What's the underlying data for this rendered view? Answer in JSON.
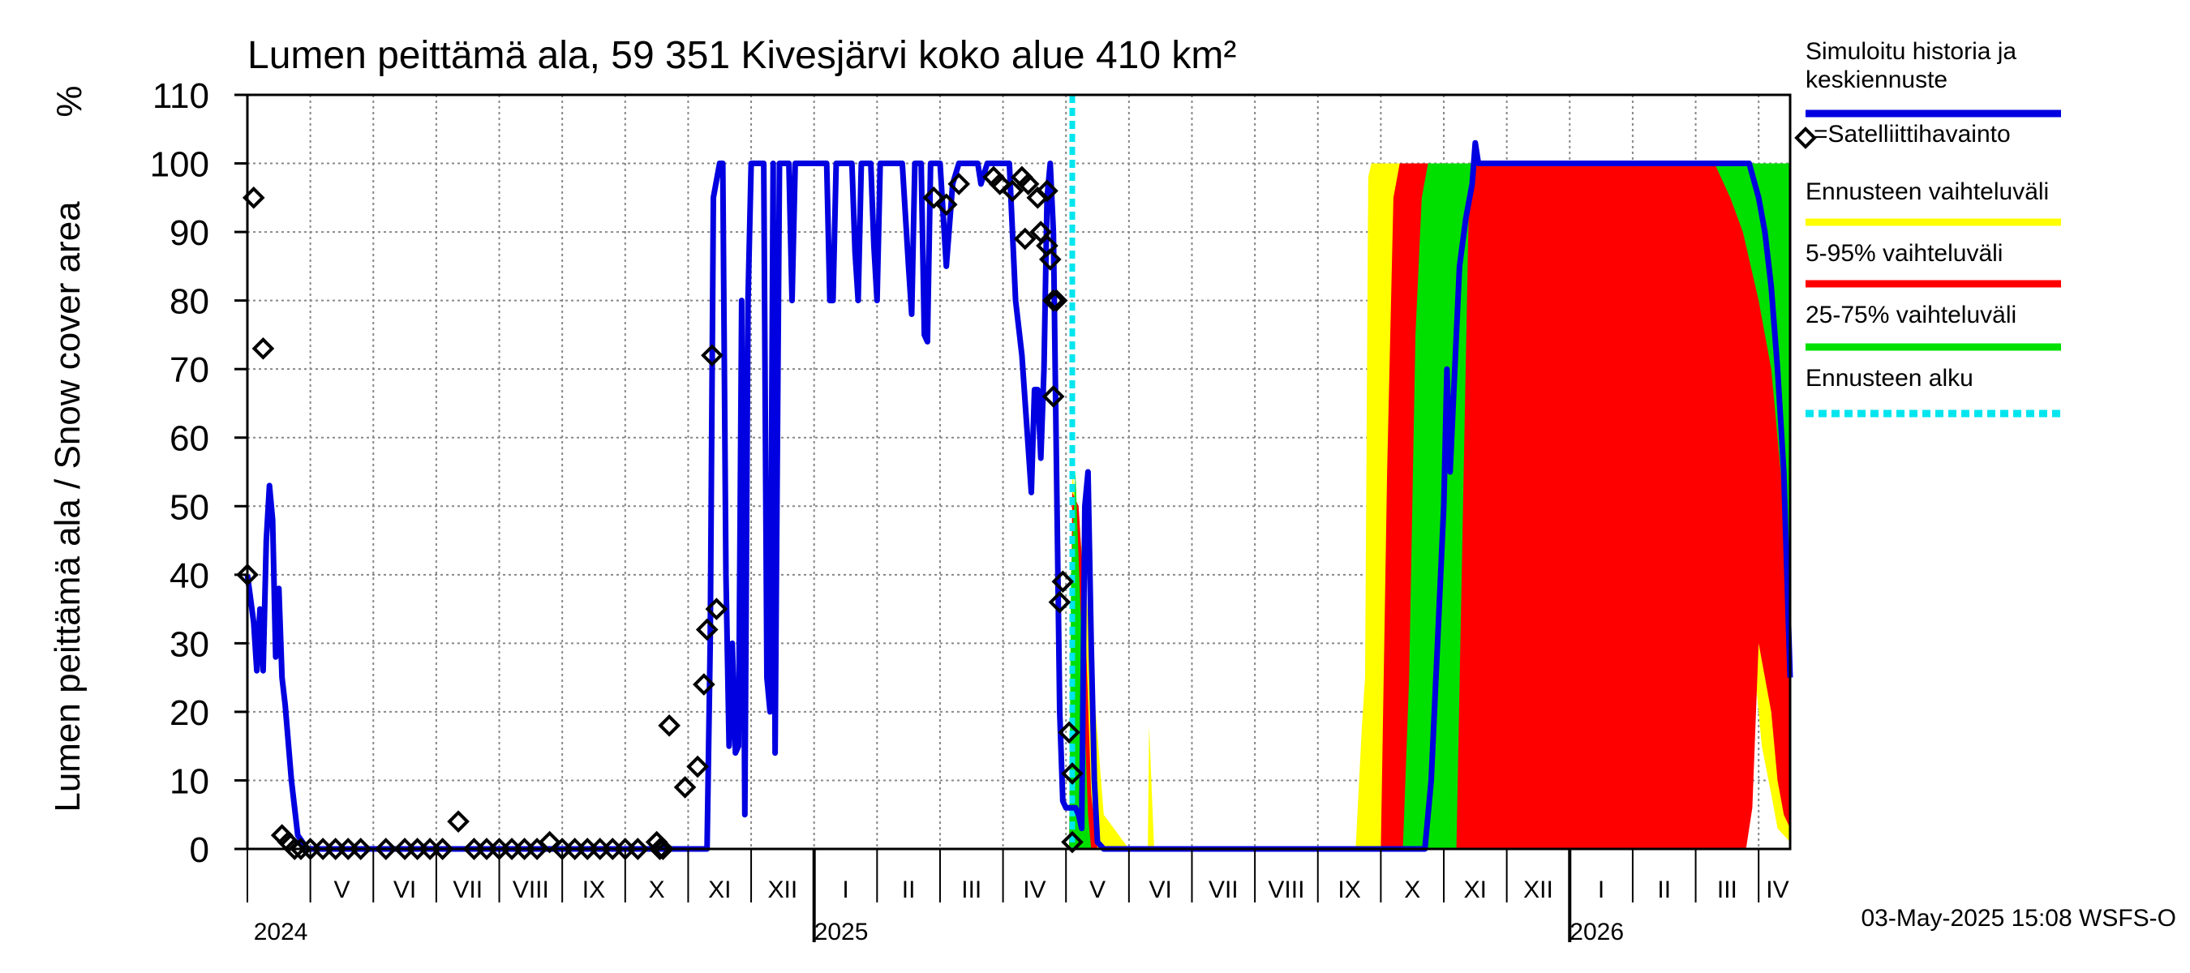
{
  "chart_data": {
    "type": "area",
    "title": "Lumen peittämä ala, 59 351 Kivesjärvi koko alue 410 km²",
    "ylabel": "Lumen peittämä ala / Snow cover area",
    "yunit": "%",
    "ylim": [
      0,
      110
    ],
    "yticks": [
      0,
      10,
      20,
      30,
      40,
      50,
      60,
      70,
      80,
      90,
      100,
      110
    ],
    "xlim": [
      0,
      24.5
    ],
    "x_unit": "months since 2024-04-01",
    "month_labels": [
      {
        "x": 1.5,
        "label": "V"
      },
      {
        "x": 2.5,
        "label": "VI"
      },
      {
        "x": 3.5,
        "label": "VII"
      },
      {
        "x": 4.5,
        "label": "VIII"
      },
      {
        "x": 5.5,
        "label": "IX"
      },
      {
        "x": 6.5,
        "label": "X"
      },
      {
        "x": 7.5,
        "label": "XI"
      },
      {
        "x": 8.5,
        "label": "XII"
      },
      {
        "x": 9.5,
        "label": "I"
      },
      {
        "x": 10.5,
        "label": "II"
      },
      {
        "x": 11.5,
        "label": "III"
      },
      {
        "x": 12.5,
        "label": "IV"
      },
      {
        "x": 13.5,
        "label": "V"
      },
      {
        "x": 14.5,
        "label": "VI"
      },
      {
        "x": 15.5,
        "label": "VII"
      },
      {
        "x": 16.5,
        "label": "VIII"
      },
      {
        "x": 17.5,
        "label": "IX"
      },
      {
        "x": 18.5,
        "label": "X"
      },
      {
        "x": 19.5,
        "label": "XI"
      },
      {
        "x": 20.5,
        "label": "XII"
      },
      {
        "x": 21.5,
        "label": "I"
      },
      {
        "x": 22.5,
        "label": "II"
      },
      {
        "x": 23.5,
        "label": "III"
      },
      {
        "x": 24.3,
        "label": "IV"
      }
    ],
    "year_labels": [
      {
        "x": 0.1,
        "label": "2024"
      },
      {
        "x": 9.0,
        "label": "2025"
      },
      {
        "x": 21.0,
        "label": "2026"
      }
    ],
    "year_boundaries": [
      9.0,
      21.0
    ],
    "forecast_start": 13.1,
    "series": [
      {
        "name": "Simuloitu historia ja keskiennuste",
        "color": "#0000e0",
        "points": [
          [
            0.0,
            40
          ],
          [
            0.1,
            33
          ],
          [
            0.15,
            26
          ],
          [
            0.2,
            35
          ],
          [
            0.25,
            26
          ],
          [
            0.3,
            45
          ],
          [
            0.35,
            53
          ],
          [
            0.4,
            48
          ],
          [
            0.45,
            28
          ],
          [
            0.5,
            38
          ],
          [
            0.55,
            25
          ],
          [
            0.6,
            21
          ],
          [
            0.7,
            10
          ],
          [
            0.8,
            2
          ],
          [
            0.95,
            0
          ],
          [
            7.3,
            0
          ],
          [
            7.35,
            30
          ],
          [
            7.4,
            95
          ],
          [
            7.5,
            100
          ],
          [
            7.55,
            100
          ],
          [
            7.6,
            40
          ],
          [
            7.65,
            15
          ],
          [
            7.7,
            30
          ],
          [
            7.75,
            14
          ],
          [
            7.8,
            15
          ],
          [
            7.85,
            80
          ],
          [
            7.9,
            5
          ],
          [
            7.95,
            80
          ],
          [
            8.0,
            100
          ],
          [
            8.1,
            100
          ],
          [
            8.2,
            100
          ],
          [
            8.25,
            25
          ],
          [
            8.3,
            20
          ],
          [
            8.35,
            100
          ],
          [
            8.38,
            14
          ],
          [
            8.45,
            100
          ],
          [
            8.6,
            100
          ],
          [
            8.65,
            80
          ],
          [
            8.7,
            100
          ],
          [
            8.75,
            100
          ],
          [
            9.2,
            100
          ],
          [
            9.25,
            80
          ],
          [
            9.3,
            80
          ],
          [
            9.35,
            100
          ],
          [
            9.6,
            100
          ],
          [
            9.65,
            87
          ],
          [
            9.7,
            80
          ],
          [
            9.75,
            100
          ],
          [
            9.9,
            100
          ],
          [
            9.95,
            88
          ],
          [
            10.0,
            80
          ],
          [
            10.05,
            100
          ],
          [
            10.4,
            100
          ],
          [
            10.5,
            85
          ],
          [
            10.55,
            78
          ],
          [
            10.6,
            100
          ],
          [
            10.7,
            100
          ],
          [
            10.75,
            75
          ],
          [
            10.8,
            74
          ],
          [
            10.85,
            100
          ],
          [
            11.0,
            100
          ],
          [
            11.1,
            85
          ],
          [
            11.2,
            97
          ],
          [
            11.3,
            100
          ],
          [
            11.6,
            100
          ],
          [
            11.65,
            97
          ],
          [
            11.75,
            100
          ],
          [
            12.1,
            100
          ],
          [
            12.2,
            80
          ],
          [
            12.3,
            72
          ],
          [
            12.45,
            52
          ],
          [
            12.5,
            67
          ],
          [
            12.55,
            67
          ],
          [
            12.6,
            57
          ],
          [
            12.65,
            70
          ],
          [
            12.7,
            95
          ],
          [
            12.75,
            100
          ],
          [
            12.8,
            90
          ],
          [
            12.85,
            55
          ],
          [
            12.9,
            20
          ],
          [
            12.95,
            7
          ],
          [
            13.0,
            6
          ],
          [
            13.15,
            6
          ],
          [
            13.2,
            5
          ],
          [
            13.25,
            3
          ],
          [
            13.3,
            50
          ],
          [
            13.35,
            55
          ],
          [
            13.4,
            30
          ],
          [
            13.45,
            10
          ],
          [
            13.5,
            1
          ],
          [
            13.6,
            0
          ],
          [
            18.6,
            0
          ],
          [
            18.7,
            0
          ],
          [
            18.8,
            10
          ],
          [
            18.9,
            30
          ],
          [
            19.0,
            50
          ],
          [
            19.05,
            70
          ],
          [
            19.1,
            55
          ],
          [
            19.2,
            75
          ],
          [
            19.25,
            85
          ],
          [
            19.35,
            92
          ],
          [
            19.45,
            97
          ],
          [
            19.5,
            103
          ],
          [
            19.55,
            100
          ],
          [
            19.65,
            100
          ],
          [
            23.85,
            100
          ],
          [
            24.0,
            95
          ],
          [
            24.1,
            90
          ],
          [
            24.2,
            82
          ],
          [
            24.3,
            70
          ],
          [
            24.4,
            55
          ],
          [
            24.45,
            40
          ],
          [
            24.5,
            25
          ]
        ]
      },
      {
        "name": "Satelliittihavainto",
        "marker": "diamond",
        "points": [
          [
            0.0,
            40
          ],
          [
            0.1,
            95
          ],
          [
            0.25,
            73
          ],
          [
            0.55,
            2
          ],
          [
            0.65,
            1
          ],
          [
            0.75,
            0
          ],
          [
            0.85,
            0
          ],
          [
            1.0,
            0
          ],
          [
            1.2,
            0
          ],
          [
            1.4,
            0
          ],
          [
            1.6,
            0
          ],
          [
            1.8,
            0
          ],
          [
            2.2,
            0
          ],
          [
            2.5,
            0
          ],
          [
            2.7,
            0
          ],
          [
            2.9,
            0
          ],
          [
            3.1,
            0
          ],
          [
            3.35,
            4
          ],
          [
            3.6,
            0
          ],
          [
            3.8,
            0
          ],
          [
            4.0,
            0
          ],
          [
            4.2,
            0
          ],
          [
            4.4,
            0
          ],
          [
            4.6,
            0
          ],
          [
            4.8,
            1
          ],
          [
            5.0,
            0
          ],
          [
            5.2,
            0
          ],
          [
            5.4,
            0
          ],
          [
            5.6,
            0
          ],
          [
            5.8,
            0
          ],
          [
            6.0,
            0
          ],
          [
            6.2,
            0
          ],
          [
            6.5,
            1
          ],
          [
            6.55,
            0
          ],
          [
            6.6,
            0
          ],
          [
            6.7,
            18
          ],
          [
            6.95,
            9
          ],
          [
            7.15,
            12
          ],
          [
            7.25,
            24
          ],
          [
            7.3,
            32
          ],
          [
            7.45,
            35
          ],
          [
            7.38,
            72
          ],
          [
            10.9,
            95
          ],
          [
            11.1,
            94
          ],
          [
            11.3,
            97
          ],
          [
            11.85,
            98
          ],
          [
            11.95,
            97
          ],
          [
            12.15,
            96
          ],
          [
            12.3,
            98
          ],
          [
            12.4,
            97
          ],
          [
            12.35,
            89
          ],
          [
            12.55,
            95
          ],
          [
            12.6,
            90
          ],
          [
            12.7,
            96
          ],
          [
            12.7,
            88
          ],
          [
            12.75,
            86
          ],
          [
            12.8,
            80
          ],
          [
            12.85,
            80
          ],
          [
            12.8,
            66
          ],
          [
            12.9,
            36
          ],
          [
            12.95,
            39
          ],
          [
            13.05,
            17
          ],
          [
            13.1,
            11
          ],
          [
            13.1,
            1
          ]
        ]
      }
    ],
    "bands": [
      {
        "name": "Ennusteen vaihteluväli",
        "color": "#ffff00",
        "upper": [
          [
            13.05,
            0
          ],
          [
            13.1,
            55
          ],
          [
            13.3,
            40
          ],
          [
            13.6,
            5
          ],
          [
            14.0,
            0
          ],
          [
            14.3,
            0
          ],
          [
            14.32,
            18
          ],
          [
            14.4,
            0
          ],
          [
            17.6,
            0
          ],
          [
            17.7,
            18
          ],
          [
            17.75,
            25
          ],
          [
            17.8,
            98
          ],
          [
            17.85,
            100
          ],
          [
            24.5,
            100
          ]
        ],
        "lower": [
          [
            13.05,
            0
          ],
          [
            23.5,
            0
          ],
          [
            23.7,
            5
          ],
          [
            23.8,
            22
          ],
          [
            23.95,
            25
          ],
          [
            24.05,
            15
          ],
          [
            24.2,
            8
          ],
          [
            24.3,
            3
          ],
          [
            24.5,
            1
          ]
        ]
      },
      {
        "name": "5-95% vaihteluväli",
        "color": "#ff0000",
        "upper": [
          [
            13.05,
            0
          ],
          [
            13.1,
            52
          ],
          [
            13.2,
            50
          ],
          [
            13.3,
            35
          ],
          [
            13.4,
            8
          ],
          [
            13.5,
            0
          ],
          [
            18.0,
            0
          ],
          [
            18.1,
            55
          ],
          [
            18.2,
            95
          ],
          [
            18.3,
            100
          ],
          [
            24.5,
            100
          ]
        ],
        "lower": [
          [
            13.05,
            0
          ],
          [
            23.8,
            0
          ],
          [
            23.9,
            6
          ],
          [
            24.0,
            30
          ],
          [
            24.1,
            25
          ],
          [
            24.2,
            20
          ],
          [
            24.3,
            10
          ],
          [
            24.4,
            5
          ],
          [
            24.5,
            3
          ]
        ]
      },
      {
        "name": "25-75% vaihteluväli",
        "color": "#00e000",
        "upper": [
          [
            13.05,
            0
          ],
          [
            13.08,
            40
          ],
          [
            13.15,
            55
          ],
          [
            13.25,
            30
          ],
          [
            13.35,
            5
          ],
          [
            13.4,
            0
          ],
          [
            18.35,
            0
          ],
          [
            18.45,
            25
          ],
          [
            18.55,
            75
          ],
          [
            18.65,
            95
          ],
          [
            18.75,
            100
          ],
          [
            24.5,
            100
          ]
        ],
        "lower": [
          [
            13.05,
            0
          ],
          [
            18.0,
            0
          ],
          [
            19.2,
            0
          ],
          [
            19.4,
            95
          ],
          [
            19.5,
            100
          ],
          [
            23.3,
            100
          ],
          [
            23.55,
            95
          ],
          [
            23.75,
            90
          ],
          [
            24.0,
            80
          ],
          [
            24.2,
            70
          ],
          [
            24.35,
            55
          ],
          [
            24.45,
            40
          ],
          [
            24.5,
            35
          ]
        ]
      }
    ],
    "legend": [
      {
        "label_lines": [
          "Simuloitu historia ja",
          "keskiennuste"
        ],
        "color": "#0000e0",
        "style": "line"
      },
      {
        "label_lines": [
          "=Satelliittihavainto"
        ],
        "color": "#000000",
        "style": "diamond"
      },
      {
        "label_lines": [
          "Ennusteen vaihteluväli"
        ],
        "color": "#ffff00",
        "style": "line"
      },
      {
        "label_lines": [
          "5-95% vaihteluväli"
        ],
        "color": "#ff0000",
        "style": "line"
      },
      {
        "label_lines": [
          "25-75% vaihteluväli"
        ],
        "color": "#00e000",
        "style": "line"
      },
      {
        "label_lines": [
          "Ennusteen alku"
        ],
        "color": "#00e5ee",
        "style": "dashed"
      }
    ]
  },
  "footer": {
    "timestamp": "03-May-2025 15:08 WSFS-O"
  }
}
